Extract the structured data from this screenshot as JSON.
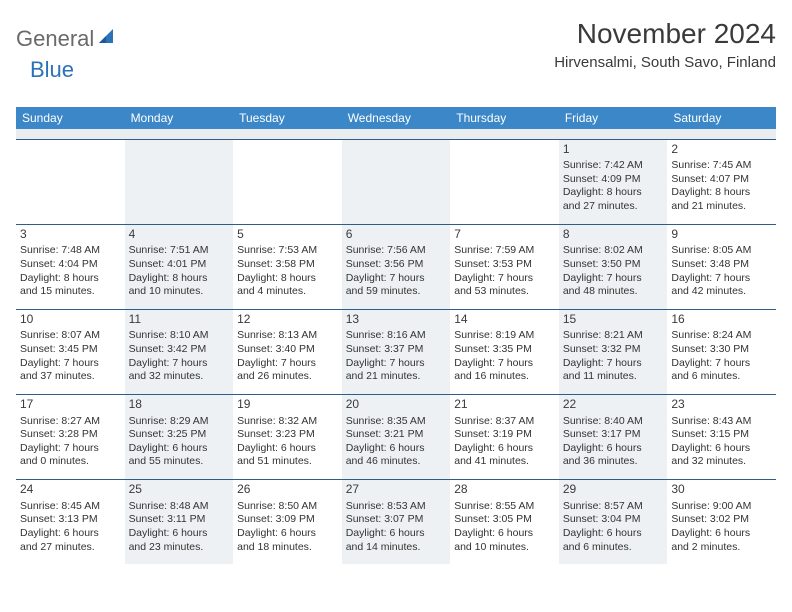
{
  "logo": {
    "general": "General",
    "blue": "Blue"
  },
  "title": "November 2024",
  "subtitle": "Hirvensalmi, South Savo, Finland",
  "colors": {
    "header_bg": "#3b87c8",
    "header_text": "#ffffff",
    "rule": "#2f5d88",
    "shade": "#eef1f3",
    "logo_gray": "#6a6a6a",
    "logo_blue": "#2a73b8"
  },
  "day_headers": [
    "Sunday",
    "Monday",
    "Tuesday",
    "Wednesday",
    "Thursday",
    "Friday",
    "Saturday"
  ],
  "weeks": [
    [
      {
        "blank": true
      },
      {
        "blank": true
      },
      {
        "blank": true
      },
      {
        "blank": true
      },
      {
        "blank": true
      },
      {
        "n": "1",
        "sunrise": "Sunrise: 7:42 AM",
        "sunset": "Sunset: 4:09 PM",
        "d1": "Daylight: 8 hours",
        "d2": "and 27 minutes."
      },
      {
        "n": "2",
        "sunrise": "Sunrise: 7:45 AM",
        "sunset": "Sunset: 4:07 PM",
        "d1": "Daylight: 8 hours",
        "d2": "and 21 minutes."
      }
    ],
    [
      {
        "n": "3",
        "sunrise": "Sunrise: 7:48 AM",
        "sunset": "Sunset: 4:04 PM",
        "d1": "Daylight: 8 hours",
        "d2": "and 15 minutes."
      },
      {
        "n": "4",
        "sunrise": "Sunrise: 7:51 AM",
        "sunset": "Sunset: 4:01 PM",
        "d1": "Daylight: 8 hours",
        "d2": "and 10 minutes."
      },
      {
        "n": "5",
        "sunrise": "Sunrise: 7:53 AM",
        "sunset": "Sunset: 3:58 PM",
        "d1": "Daylight: 8 hours",
        "d2": "and 4 minutes."
      },
      {
        "n": "6",
        "sunrise": "Sunrise: 7:56 AM",
        "sunset": "Sunset: 3:56 PM",
        "d1": "Daylight: 7 hours",
        "d2": "and 59 minutes."
      },
      {
        "n": "7",
        "sunrise": "Sunrise: 7:59 AM",
        "sunset": "Sunset: 3:53 PM",
        "d1": "Daylight: 7 hours",
        "d2": "and 53 minutes."
      },
      {
        "n": "8",
        "sunrise": "Sunrise: 8:02 AM",
        "sunset": "Sunset: 3:50 PM",
        "d1": "Daylight: 7 hours",
        "d2": "and 48 minutes."
      },
      {
        "n": "9",
        "sunrise": "Sunrise: 8:05 AM",
        "sunset": "Sunset: 3:48 PM",
        "d1": "Daylight: 7 hours",
        "d2": "and 42 minutes."
      }
    ],
    [
      {
        "n": "10",
        "sunrise": "Sunrise: 8:07 AM",
        "sunset": "Sunset: 3:45 PM",
        "d1": "Daylight: 7 hours",
        "d2": "and 37 minutes."
      },
      {
        "n": "11",
        "sunrise": "Sunrise: 8:10 AM",
        "sunset": "Sunset: 3:42 PM",
        "d1": "Daylight: 7 hours",
        "d2": "and 32 minutes."
      },
      {
        "n": "12",
        "sunrise": "Sunrise: 8:13 AM",
        "sunset": "Sunset: 3:40 PM",
        "d1": "Daylight: 7 hours",
        "d2": "and 26 minutes."
      },
      {
        "n": "13",
        "sunrise": "Sunrise: 8:16 AM",
        "sunset": "Sunset: 3:37 PM",
        "d1": "Daylight: 7 hours",
        "d2": "and 21 minutes."
      },
      {
        "n": "14",
        "sunrise": "Sunrise: 8:19 AM",
        "sunset": "Sunset: 3:35 PM",
        "d1": "Daylight: 7 hours",
        "d2": "and 16 minutes."
      },
      {
        "n": "15",
        "sunrise": "Sunrise: 8:21 AM",
        "sunset": "Sunset: 3:32 PM",
        "d1": "Daylight: 7 hours",
        "d2": "and 11 minutes."
      },
      {
        "n": "16",
        "sunrise": "Sunrise: 8:24 AM",
        "sunset": "Sunset: 3:30 PM",
        "d1": "Daylight: 7 hours",
        "d2": "and 6 minutes."
      }
    ],
    [
      {
        "n": "17",
        "sunrise": "Sunrise: 8:27 AM",
        "sunset": "Sunset: 3:28 PM",
        "d1": "Daylight: 7 hours",
        "d2": "and 0 minutes."
      },
      {
        "n": "18",
        "sunrise": "Sunrise: 8:29 AM",
        "sunset": "Sunset: 3:25 PM",
        "d1": "Daylight: 6 hours",
        "d2": "and 55 minutes."
      },
      {
        "n": "19",
        "sunrise": "Sunrise: 8:32 AM",
        "sunset": "Sunset: 3:23 PM",
        "d1": "Daylight: 6 hours",
        "d2": "and 51 minutes."
      },
      {
        "n": "20",
        "sunrise": "Sunrise: 8:35 AM",
        "sunset": "Sunset: 3:21 PM",
        "d1": "Daylight: 6 hours",
        "d2": "and 46 minutes."
      },
      {
        "n": "21",
        "sunrise": "Sunrise: 8:37 AM",
        "sunset": "Sunset: 3:19 PM",
        "d1": "Daylight: 6 hours",
        "d2": "and 41 minutes."
      },
      {
        "n": "22",
        "sunrise": "Sunrise: 8:40 AM",
        "sunset": "Sunset: 3:17 PM",
        "d1": "Daylight: 6 hours",
        "d2": "and 36 minutes."
      },
      {
        "n": "23",
        "sunrise": "Sunrise: 8:43 AM",
        "sunset": "Sunset: 3:15 PM",
        "d1": "Daylight: 6 hours",
        "d2": "and 32 minutes."
      }
    ],
    [
      {
        "n": "24",
        "sunrise": "Sunrise: 8:45 AM",
        "sunset": "Sunset: 3:13 PM",
        "d1": "Daylight: 6 hours",
        "d2": "and 27 minutes."
      },
      {
        "n": "25",
        "sunrise": "Sunrise: 8:48 AM",
        "sunset": "Sunset: 3:11 PM",
        "d1": "Daylight: 6 hours",
        "d2": "and 23 minutes."
      },
      {
        "n": "26",
        "sunrise": "Sunrise: 8:50 AM",
        "sunset": "Sunset: 3:09 PM",
        "d1": "Daylight: 6 hours",
        "d2": "and 18 minutes."
      },
      {
        "n": "27",
        "sunrise": "Sunrise: 8:53 AM",
        "sunset": "Sunset: 3:07 PM",
        "d1": "Daylight: 6 hours",
        "d2": "and 14 minutes."
      },
      {
        "n": "28",
        "sunrise": "Sunrise: 8:55 AM",
        "sunset": "Sunset: 3:05 PM",
        "d1": "Daylight: 6 hours",
        "d2": "and 10 minutes."
      },
      {
        "n": "29",
        "sunrise": "Sunrise: 8:57 AM",
        "sunset": "Sunset: 3:04 PM",
        "d1": "Daylight: 6 hours",
        "d2": "and 6 minutes."
      },
      {
        "n": "30",
        "sunrise": "Sunrise: 9:00 AM",
        "sunset": "Sunset: 3:02 PM",
        "d1": "Daylight: 6 hours",
        "d2": "and 2 minutes."
      }
    ]
  ]
}
